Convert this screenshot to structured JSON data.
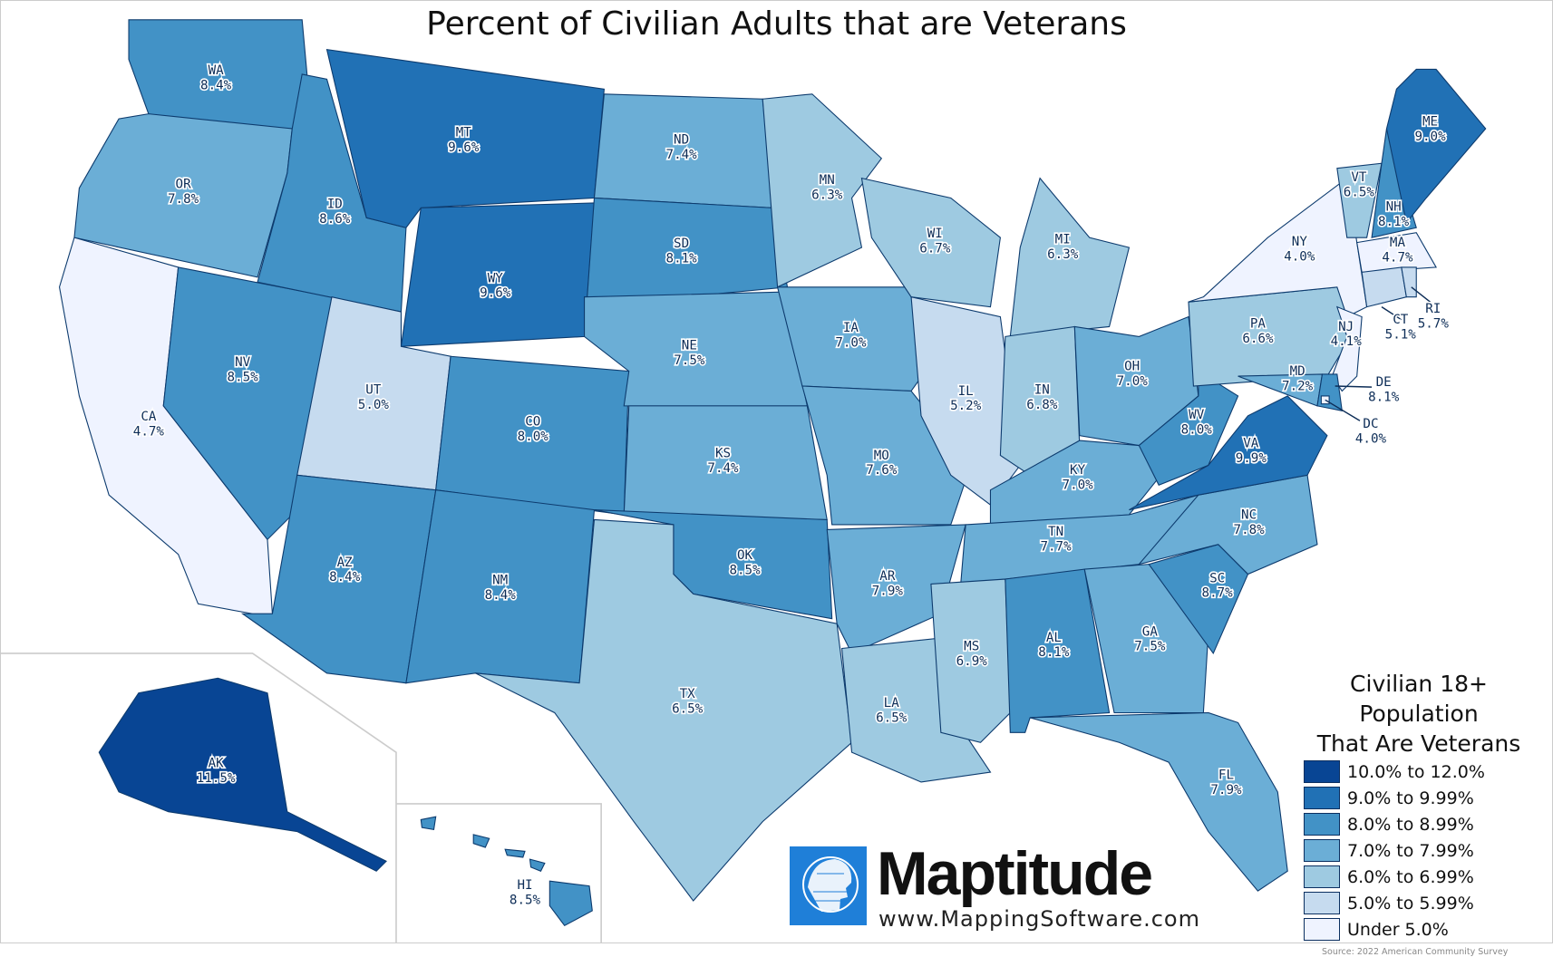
{
  "title": "Percent of Civilian Adults that are Veterans",
  "legend": {
    "title_line1": "Civilian 18+ Population",
    "title_line2": "That Are Veterans",
    "bins": [
      {
        "label": "10.0% to 12.0%",
        "min": 10.0,
        "color": "#084594"
      },
      {
        "label": "9.0% to 9.99%",
        "min": 9.0,
        "color": "#2171b5"
      },
      {
        "label": "8.0% to 8.99%",
        "min": 8.0,
        "color": "#4292c6"
      },
      {
        "label": "7.0% to 7.99%",
        "min": 7.0,
        "color": "#6baed6"
      },
      {
        "label": "6.0% to 6.99%",
        "min": 6.0,
        "color": "#9ecae1"
      },
      {
        "label": "5.0% to 5.99%",
        "min": 5.0,
        "color": "#c6dbef"
      },
      {
        "label": "Under 5.0%",
        "min": 0,
        "color": "#eff3ff"
      }
    ],
    "source": "Source: 2022 American Community Survey"
  },
  "branding": {
    "name": "Maptitude",
    "url": "www.MappingSoftware.com"
  },
  "states": [
    {
      "abbr": "WA",
      "value": 8.4
    },
    {
      "abbr": "OR",
      "value": 7.8
    },
    {
      "abbr": "CA",
      "value": 4.7
    },
    {
      "abbr": "NV",
      "value": 8.5
    },
    {
      "abbr": "ID",
      "value": 8.6
    },
    {
      "abbr": "MT",
      "value": 9.6
    },
    {
      "abbr": "WY",
      "value": 9.6
    },
    {
      "abbr": "UT",
      "value": 5.0
    },
    {
      "abbr": "CO",
      "value": 8.0
    },
    {
      "abbr": "AZ",
      "value": 8.4
    },
    {
      "abbr": "NM",
      "value": 8.4
    },
    {
      "abbr": "ND",
      "value": 7.4
    },
    {
      "abbr": "SD",
      "value": 8.1
    },
    {
      "abbr": "NE",
      "value": 7.5
    },
    {
      "abbr": "KS",
      "value": 7.4
    },
    {
      "abbr": "OK",
      "value": 8.5
    },
    {
      "abbr": "TX",
      "value": 6.5
    },
    {
      "abbr": "MN",
      "value": 6.3
    },
    {
      "abbr": "IA",
      "value": 7.0
    },
    {
      "abbr": "MO",
      "value": 7.6
    },
    {
      "abbr": "AR",
      "value": 7.9
    },
    {
      "abbr": "LA",
      "value": 6.5
    },
    {
      "abbr": "WI",
      "value": 6.7
    },
    {
      "abbr": "MI",
      "value": 6.3
    },
    {
      "abbr": "IL",
      "value": 5.2
    },
    {
      "abbr": "IN",
      "value": 6.8
    },
    {
      "abbr": "OH",
      "value": 7.0
    },
    {
      "abbr": "KY",
      "value": 7.0
    },
    {
      "abbr": "TN",
      "value": 7.7
    },
    {
      "abbr": "MS",
      "value": 6.9
    },
    {
      "abbr": "AL",
      "value": 8.1
    },
    {
      "abbr": "GA",
      "value": 7.5
    },
    {
      "abbr": "FL",
      "value": 7.9
    },
    {
      "abbr": "SC",
      "value": 8.7
    },
    {
      "abbr": "NC",
      "value": 7.8
    },
    {
      "abbr": "VA",
      "value": 9.9
    },
    {
      "abbr": "WV",
      "value": 8.0
    },
    {
      "abbr": "PA",
      "value": 6.6
    },
    {
      "abbr": "NY",
      "value": 4.0
    },
    {
      "abbr": "NJ",
      "value": 4.1
    },
    {
      "abbr": "MD",
      "value": 7.2
    },
    {
      "abbr": "DE",
      "value": 8.1
    },
    {
      "abbr": "DC",
      "value": 4.0
    },
    {
      "abbr": "VT",
      "value": 6.5
    },
    {
      "abbr": "NH",
      "value": 8.1
    },
    {
      "abbr": "ME",
      "value": 9.0
    },
    {
      "abbr": "MA",
      "value": 4.7
    },
    {
      "abbr": "CT",
      "value": 5.1
    },
    {
      "abbr": "RI",
      "value": 5.7
    },
    {
      "abbr": "AK",
      "value": 11.5
    },
    {
      "abbr": "HI",
      "value": 8.5
    }
  ]
}
